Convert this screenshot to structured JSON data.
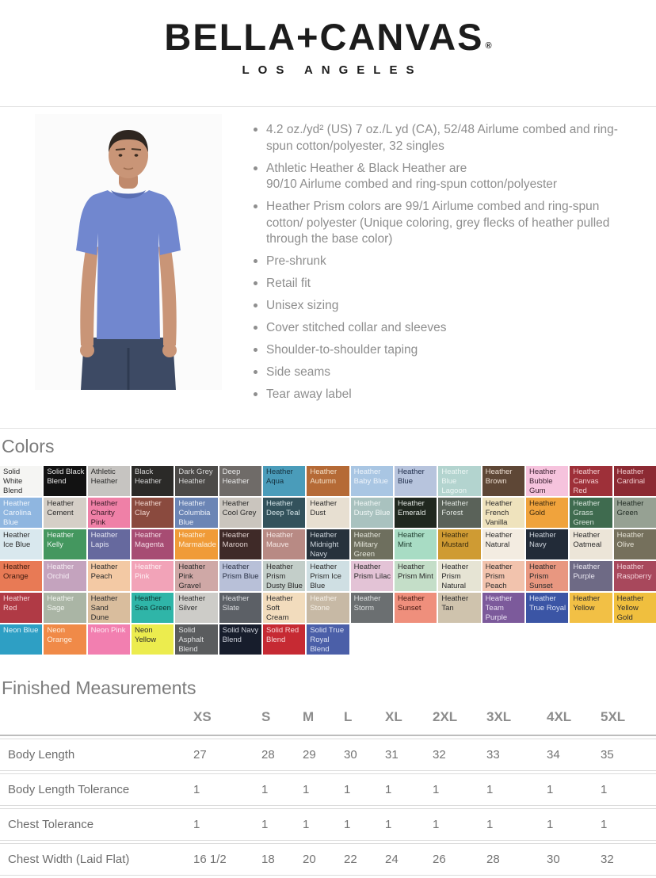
{
  "logo": {
    "brand": "BELLA+CANVAS",
    "registered": "®",
    "subtitle": "LOS ANGELES"
  },
  "product": {
    "bullets": [
      "4.2 oz./yd² (US) 7 oz./L yd (CA), 52/48 Airlume combed and ring-spun cotton/polyester, 32 singles",
      "Athletic Heather & Black Heather are\n90/10 Airlume combed and ring-spun cotton/polyester",
      "Heather Prism colors are 99/1 Airlume combed and ring-spun cotton/ polyester (Unique coloring, grey flecks of heather pulled through the base color)",
      "Pre-shrunk",
      "Retail fit",
      "Unisex sizing",
      "Cover stitched collar and sleeves",
      "Shoulder-to-shoulder taping",
      "Side seams",
      "Tear away label"
    ],
    "photo_alt": "Model wearing heather blue crew neck t-shirt"
  },
  "colors_section": {
    "title": "Colors",
    "rows": [
      [
        {
          "name": "Solid White Blend",
          "bg": "#f5f5f3",
          "fg": "#2b2b2b"
        },
        {
          "name": "Solid Black Blend",
          "bg": "#121212",
          "fg": "#e8e8e8"
        },
        {
          "name": "Athletic Heather",
          "bg": "#c6c4c1",
          "fg": "#2b2b2b"
        },
        {
          "name": "Black Heather",
          "bg": "#2b2a28",
          "fg": "#d6d6d6"
        },
        {
          "name": "Dark Grey Heather",
          "bg": "#4c4a48",
          "fg": "#dadada"
        },
        {
          "name": "Deep Heather",
          "bg": "#6f6b68",
          "fg": "#e7e7e7"
        },
        {
          "name": "Heather Aqua",
          "bg": "#4a9cba",
          "fg": "#14303d"
        },
        {
          "name": "Heather Autumn",
          "bg": "#b56a36",
          "fg": "#f4dfc7"
        },
        {
          "name": "Heather Baby Blue",
          "bg": "#a9c6e3",
          "fg": "#eef4fb"
        },
        {
          "name": "Heather Blue",
          "bg": "#b7c4dd",
          "fg": "#1e2c4a"
        },
        {
          "name": "Heather Blue Lagoon",
          "bg": "#b3d4cf",
          "fg": "#ecf6f4"
        },
        {
          "name": "Heather Brown",
          "bg": "#5e4736",
          "fg": "#ecddd0"
        },
        {
          "name": "Heather Bubble Gum",
          "bg": "#f6c3dd",
          "fg": "#3c2232"
        },
        {
          "name": "Heather Canvas Red",
          "bg": "#9e3039",
          "fg": "#f4ced1"
        },
        {
          "name": "Heather Cardinal",
          "bg": "#8c2a33",
          "fg": "#efcacd"
        }
      ],
      [
        {
          "name": "Heather Carolina Blue",
          "bg": "#8fb6e0",
          "fg": "#eef4fb"
        },
        {
          "name": "Heather Cement",
          "bg": "#d5cfc7",
          "fg": "#2b2b2b"
        },
        {
          "name": "Heather Charity Pink",
          "bg": "#ef80a7",
          "fg": "#3a1c28"
        },
        {
          "name": "Heather Clay",
          "bg": "#8a4a3e",
          "fg": "#f1d6ce"
        },
        {
          "name": "Heather Columbia Blue",
          "bg": "#6b85b5",
          "fg": "#e9eef7"
        },
        {
          "name": "Heather Cool Grey",
          "bg": "#cac5be",
          "fg": "#2b2b2b"
        },
        {
          "name": "Heather Deep Teal",
          "bg": "#33525c",
          "fg": "#d2e2e6"
        },
        {
          "name": "Heather Dust",
          "bg": "#e7dfd1",
          "fg": "#2b2b2b"
        },
        {
          "name": "Heather Dusty Blue",
          "bg": "#a9c2bf",
          "fg": "#f0f7f6"
        },
        {
          "name": "Heather Emerald",
          "bg": "#20281f",
          "fg": "#e1e6e1"
        },
        {
          "name": "Heather Forest",
          "bg": "#5a6259",
          "fg": "#e0e5e0"
        },
        {
          "name": "Heather French Vanilla",
          "bg": "#efe3bd",
          "fg": "#2b2b2b"
        },
        {
          "name": "Heather Gold",
          "bg": "#f0a33c",
          "fg": "#3c2a10"
        },
        {
          "name": "Heather Grass Green",
          "bg": "#3f6b4f",
          "fg": "#d8e5dc"
        },
        {
          "name": "Heather Green",
          "bg": "#96a193",
          "fg": "#1f2a22"
        }
      ],
      [
        {
          "name": "Heather Ice Blue",
          "bg": "#d9e8ee",
          "fg": "#2b2b2b"
        },
        {
          "name": "Heather Kelly",
          "bg": "#44975f",
          "fg": "#ebf5ee"
        },
        {
          "name": "Heather Lapis",
          "bg": "#66699e",
          "fg": "#e5e6f3"
        },
        {
          "name": "Heather Magenta",
          "bg": "#a74c73",
          "fg": "#f3d8e3"
        },
        {
          "name": "Heather Marmalade",
          "bg": "#f09b38",
          "fg": "#fdf1dd"
        },
        {
          "name": "Heather Maroon",
          "bg": "#3f2a28",
          "fg": "#dfd0ce"
        },
        {
          "name": "Heather Mauve",
          "bg": "#b88a84",
          "fg": "#f6e8e5"
        },
        {
          "name": "Heather Midnight Navy",
          "bg": "#27323c",
          "fg": "#cdd5dc"
        },
        {
          "name": "Heather Military Green",
          "bg": "#6e6f5e",
          "fg": "#e3e4d9"
        },
        {
          "name": "Heather Mint",
          "bg": "#a8dcc4",
          "fg": "#1d3a2c"
        },
        {
          "name": "Heather Mustard",
          "bg": "#cf9b33",
          "fg": "#3a2c0e"
        },
        {
          "name": "Heather Natural",
          "bg": "#f3ece1",
          "fg": "#2b2b2b"
        },
        {
          "name": "Heather Navy",
          "bg": "#222b38",
          "fg": "#cdd3db"
        },
        {
          "name": "Heather Oatmeal",
          "bg": "#ece5d8",
          "fg": "#2b2b2b"
        },
        {
          "name": "Heather Olive",
          "bg": "#75705c",
          "fg": "#e5e2d5"
        }
      ],
      [
        {
          "name": "Heather Orange",
          "bg": "#e87a55",
          "fg": "#3f1c10"
        },
        {
          "name": "Heather Orchid",
          "bg": "#c4a3be",
          "fg": "#f5ecf3"
        },
        {
          "name": "Heather Peach",
          "bg": "#f3c9a4",
          "fg": "#2b2b2b"
        },
        {
          "name": "Heather Pink",
          "bg": "#f2a3b8",
          "fg": "#fdeff3"
        },
        {
          "name": "Heather Pink Gravel",
          "bg": "#cfa8a6",
          "fg": "#2b2b2b"
        },
        {
          "name": "Heather Prism Blue",
          "bg": "#b8c0d8",
          "fg": "#2c3347"
        },
        {
          "name": "Heather Prism Dusty Blue",
          "bg": "#c3cec9",
          "fg": "#2b2b2b"
        },
        {
          "name": "Heather Prism Ice Blue",
          "bg": "#cfdfe3",
          "fg": "#2b2b2b"
        },
        {
          "name": "Heather Prism Lilac",
          "bg": "#e3c3d6",
          "fg": "#2b2b2b"
        },
        {
          "name": "Heather Prism Mint",
          "bg": "#c4dec8",
          "fg": "#2b2b2b"
        },
        {
          "name": "Heather Prism Natural",
          "bg": "#e6e4d4",
          "fg": "#2b2b2b"
        },
        {
          "name": "Heather Prism Peach",
          "bg": "#f2c3ad",
          "fg": "#2b2b2b"
        },
        {
          "name": "Heather Prism Sunset",
          "bg": "#e89780",
          "fg": "#2b2b2b"
        },
        {
          "name": "Heather Purple",
          "bg": "#6e6a85",
          "fg": "#e7e5ef"
        },
        {
          "name": "Heather Raspberry",
          "bg": "#a8485c",
          "fg": "#f2d0d8"
        }
      ],
      [
        {
          "name": "Heather Red",
          "bg": "#b03a45",
          "fg": "#f5d3d6"
        },
        {
          "name": "Heather Sage",
          "bg": "#aab5a5",
          "fg": "#f1f5ef"
        },
        {
          "name": "Heather Sand Dune",
          "bg": "#d9bd9d",
          "fg": "#2b2b2b"
        },
        {
          "name": "Heather Sea Green",
          "bg": "#2fb5a8",
          "fg": "#0c332f"
        },
        {
          "name": "Heather Silver",
          "bg": "#cdccc8",
          "fg": "#2b2b2b"
        },
        {
          "name": "Heather Slate",
          "bg": "#5c6066",
          "fg": "#dadcdf"
        },
        {
          "name": "Heather Soft Cream",
          "bg": "#f2dcbd",
          "fg": "#2b2b2b"
        },
        {
          "name": "Heather Stone",
          "bg": "#c7b9a5",
          "fg": "#f5f0e7"
        },
        {
          "name": "Heather Storm",
          "bg": "#6b6f71",
          "fg": "#dee1e2"
        },
        {
          "name": "Heather Sunset",
          "bg": "#ef8f7c",
          "fg": "#44170f"
        },
        {
          "name": "Heather Tan",
          "bg": "#cfc3ad",
          "fg": "#2b2b2b"
        },
        {
          "name": "Heather Team Purple",
          "bg": "#7c5a9b",
          "fg": "#eae1f3"
        },
        {
          "name": "Heather True Royal",
          "bg": "#3b55a5",
          "fg": "#dce3f5"
        },
        {
          "name": "Heather Yellow",
          "bg": "#f2c045",
          "fg": "#2b2b2b"
        },
        {
          "name": "Heather Yellow Gold",
          "bg": "#f0bf3e",
          "fg": "#2b2b2b"
        }
      ],
      [
        {
          "name": "Neon Blue",
          "bg": "#2e9fc4",
          "fg": "#e1f3f9"
        },
        {
          "name": "Neon Orange",
          "bg": "#f08a48",
          "fg": "#fdefdf"
        },
        {
          "name": "Neon Pink",
          "bg": "#f27fb0",
          "fg": "#fdeaf3"
        },
        {
          "name": "Neon Yellow",
          "bg": "#ecec4e",
          "fg": "#2b2b2b"
        },
        {
          "name": "Solid Asphalt Blend",
          "bg": "#5a5c5e",
          "fg": "#dfe0e1"
        },
        {
          "name": "Solid Navy Blend",
          "bg": "#171d2c",
          "fg": "#cdd1db"
        },
        {
          "name": "Solid Red Blend",
          "bg": "#c62a33",
          "fg": "#f8d8d9"
        },
        {
          "name": "Solid True Royal Blend",
          "bg": "#4b5fa8",
          "fg": "#dee4f5"
        }
      ]
    ]
  },
  "measurements": {
    "title": "Finished Measurements",
    "size_headers": [
      "XS",
      "S",
      "M",
      "L",
      "XL",
      "2XL",
      "3XL",
      "4XL",
      "5XL"
    ],
    "rows": [
      {
        "label": "Body Length",
        "values": [
          "27",
          "28",
          "29",
          "30",
          "31",
          "32",
          "33",
          "34",
          "35"
        ]
      },
      {
        "label": "Body Length Tolerance",
        "values": [
          "1",
          "1",
          "1",
          "1",
          "1",
          "1",
          "1",
          "1",
          "1"
        ]
      },
      {
        "label": "Chest Tolerance",
        "values": [
          "1",
          "1",
          "1",
          "1",
          "1",
          "1",
          "1",
          "1",
          "1"
        ]
      },
      {
        "label": "Chest Width (Laid Flat)",
        "values": [
          "16 1/2",
          "18",
          "20",
          "22",
          "24",
          "26",
          "28",
          "30",
          "32"
        ]
      }
    ]
  }
}
